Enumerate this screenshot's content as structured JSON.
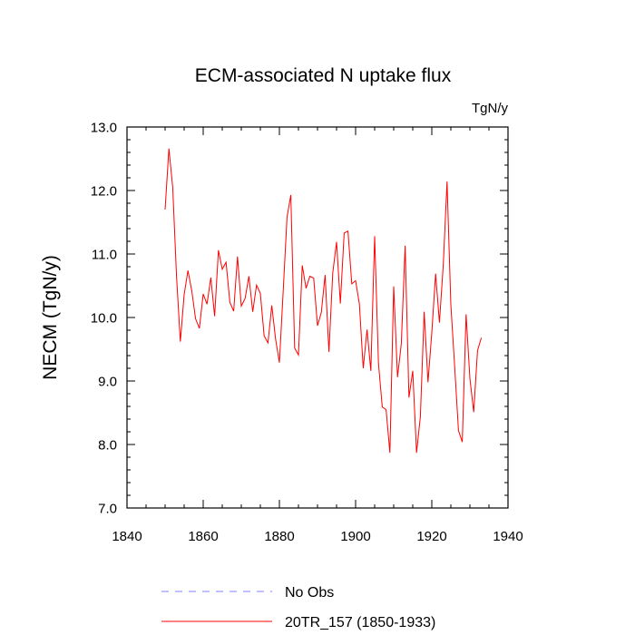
{
  "chart_data": {
    "type": "line",
    "title": "ECM-associated N uptake flux",
    "units": "TgN/y",
    "xlabel": "",
    "ylabel": "NECM  (TgN/y)",
    "xlim": [
      1840,
      1940
    ],
    "ylim": [
      7.0,
      13.0
    ],
    "x_ticks": [
      1840,
      1860,
      1880,
      1900,
      1920,
      1940
    ],
    "x_tick_labels": [
      "1840",
      "1860",
      "1880",
      "1900",
      "1920",
      "1940"
    ],
    "y_ticks": [
      7.0,
      8.0,
      9.0,
      10.0,
      11.0,
      12.0,
      13.0
    ],
    "y_tick_labels": [
      "7.0",
      "8.0",
      "9.0",
      "10.0",
      "11.0",
      "12.0",
      "13.0"
    ],
    "grid": false,
    "legend_position": "bottom",
    "series": [
      {
        "name": "No Obs",
        "style": "dashed",
        "color": "#8080ff",
        "x": [],
        "values": []
      },
      {
        "name": "20TR_157 (1850-1933)",
        "style": "solid",
        "color": "#ff0000",
        "x": [
          1850,
          1851,
          1852,
          1853,
          1854,
          1855,
          1856,
          1857,
          1858,
          1859,
          1860,
          1861,
          1862,
          1863,
          1864,
          1865,
          1866,
          1867,
          1868,
          1869,
          1870,
          1871,
          1872,
          1873,
          1874,
          1875,
          1876,
          1877,
          1878,
          1879,
          1880,
          1881,
          1882,
          1883,
          1884,
          1885,
          1886,
          1887,
          1888,
          1889,
          1890,
          1891,
          1892,
          1893,
          1894,
          1895,
          1896,
          1897,
          1898,
          1899,
          1900,
          1901,
          1902,
          1903,
          1904,
          1905,
          1906,
          1907,
          1908,
          1909,
          1910,
          1911,
          1912,
          1913,
          1914,
          1915,
          1916,
          1917,
          1918,
          1919,
          1920,
          1921,
          1922,
          1923,
          1924,
          1925,
          1926,
          1927,
          1928,
          1929,
          1930,
          1931,
          1932,
          1933
        ],
        "values": [
          11.7,
          12.66,
          12.05,
          10.65,
          9.62,
          10.36,
          10.74,
          10.42,
          9.98,
          9.83,
          10.37,
          10.21,
          10.63,
          10.02,
          11.06,
          10.76,
          10.87,
          10.24,
          10.1,
          10.96,
          10.18,
          10.3,
          10.65,
          10.09,
          10.51,
          10.38,
          9.71,
          9.6,
          10.19,
          9.66,
          9.29,
          10.42,
          11.58,
          11.93,
          9.52,
          9.41,
          10.82,
          10.46,
          10.65,
          10.62,
          9.87,
          10.08,
          10.67,
          9.46,
          10.7,
          11.19,
          10.22,
          11.33,
          11.36,
          10.53,
          10.58,
          10.21,
          9.2,
          9.81,
          9.16,
          11.28,
          9.28,
          8.59,
          8.55,
          7.87,
          10.49,
          9.06,
          9.59,
          11.13,
          8.74,
          9.16,
          7.87,
          8.44,
          10.09,
          8.98,
          9.76,
          10.69,
          9.92,
          10.82,
          12.14,
          10.2,
          9.23,
          8.22,
          8.04,
          10.05,
          9.04,
          8.51,
          9.48,
          9.68
        ]
      }
    ]
  }
}
